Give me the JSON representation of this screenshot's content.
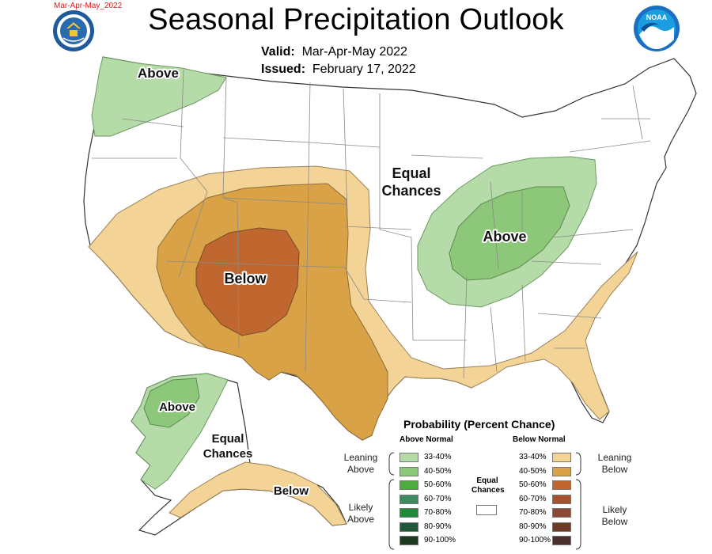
{
  "header": {
    "corner_tag": "Mar-Apr-May_2022",
    "title": "Seasonal Precipitation Outlook",
    "valid_label": "Valid:",
    "valid_value": "Mar-Apr-May 2022",
    "issued_label": "Issued:",
    "issued_value": "February 17, 2022",
    "noaa_logo_text": "NOAA"
  },
  "map": {
    "labels": {
      "above_northwest": "Above",
      "below_southwest": "Below",
      "equal_chances_central_1": "Equal",
      "equal_chances_central_2": "Chances",
      "above_ohio_valley": "Above",
      "above_alaska": "Above",
      "equal_chances_alaska_1": "Equal",
      "equal_chances_alaska_2": "Chances",
      "below_alaska": "Below"
    },
    "colors": {
      "above_33_40": "#b5dba8",
      "above_40_50": "#8dc87a",
      "below_33_40": "#f3d496",
      "below_40_50": "#d9a246",
      "below_50_60": "#c0672f",
      "state_lines": "#8a8a8a",
      "coast": "#444444"
    }
  },
  "legend": {
    "title": "Probability (Percent Chance)",
    "above_header": "Above Normal",
    "below_header": "Below Normal",
    "equal_chances": "Equal Chances",
    "leaning_above": [
      "Leaning",
      "Above"
    ],
    "likely_above": [
      "Likely",
      "Above"
    ],
    "leaning_below": [
      "Leaning",
      "Below"
    ],
    "likely_below": [
      "Likely",
      "Below"
    ],
    "above_bins": [
      {
        "label": "33-40%",
        "color": "#b5dba8"
      },
      {
        "label": "40-50%",
        "color": "#8dc87a"
      },
      {
        "label": "50-60%",
        "color": "#4faa3f"
      },
      {
        "label": "60-70%",
        "color": "#3d8a5e"
      },
      {
        "label": "70-80%",
        "color": "#1f8a3a"
      },
      {
        "label": "80-90%",
        "color": "#22573a"
      },
      {
        "label": "90-100%",
        "color": "#1d3a20"
      }
    ],
    "below_bins": [
      {
        "label": "33-40%",
        "color": "#f3d496"
      },
      {
        "label": "40-50%",
        "color": "#d9a246"
      },
      {
        "label": "50-60%",
        "color": "#c0672f"
      },
      {
        "label": "60-70%",
        "color": "#a5532e"
      },
      {
        "label": "70-80%",
        "color": "#8e4a36"
      },
      {
        "label": "80-90%",
        "color": "#6d3a26"
      },
      {
        "label": "90-100%",
        "color": "#4a2f2c"
      }
    ]
  }
}
